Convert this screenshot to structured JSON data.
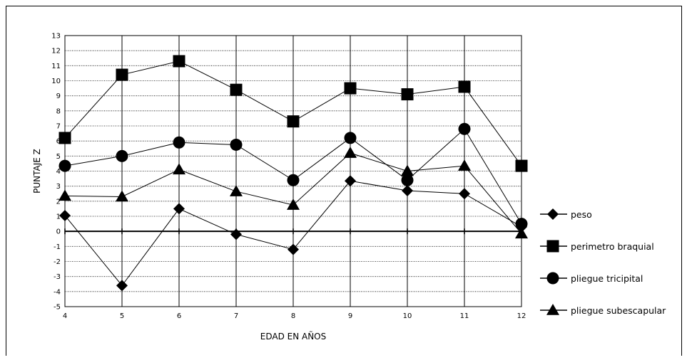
{
  "chart_data": {
    "type": "line",
    "title": "",
    "xlabel": "EDAD EN AÑOS",
    "ylabel": "PUNTAJE Z",
    "x": [
      4,
      5,
      6,
      7,
      8,
      9,
      10,
      11,
      12
    ],
    "xlim": [
      4,
      12
    ],
    "ylim": [
      -5,
      13
    ],
    "yticks": [
      13,
      12,
      11,
      10,
      9,
      8,
      7,
      6,
      5,
      4,
      3,
      2,
      1,
      0,
      -1,
      -2,
      -3,
      -4,
      -5
    ],
    "grid": true,
    "legend_position": "right",
    "series": [
      {
        "name": "peso",
        "marker": "diamond",
        "values": [
          1.05,
          -3.6,
          1.5,
          -0.2,
          -1.2,
          3.35,
          2.7,
          2.5,
          0.3
        ]
      },
      {
        "name": "perimetro braquial",
        "marker": "square",
        "values": [
          6.2,
          10.4,
          11.3,
          9.4,
          7.3,
          9.5,
          9.1,
          9.6,
          4.35
        ]
      },
      {
        "name": "pliegue tricipital",
        "marker": "circle",
        "values": [
          4.35,
          5.0,
          5.9,
          5.75,
          3.4,
          6.2,
          3.4,
          6.8,
          0.5
        ]
      },
      {
        "name": "pliegue subescapular",
        "marker": "triangle",
        "values": [
          2.35,
          2.3,
          4.1,
          2.65,
          1.75,
          5.2,
          4.0,
          4.35,
          -0.15
        ]
      }
    ]
  }
}
